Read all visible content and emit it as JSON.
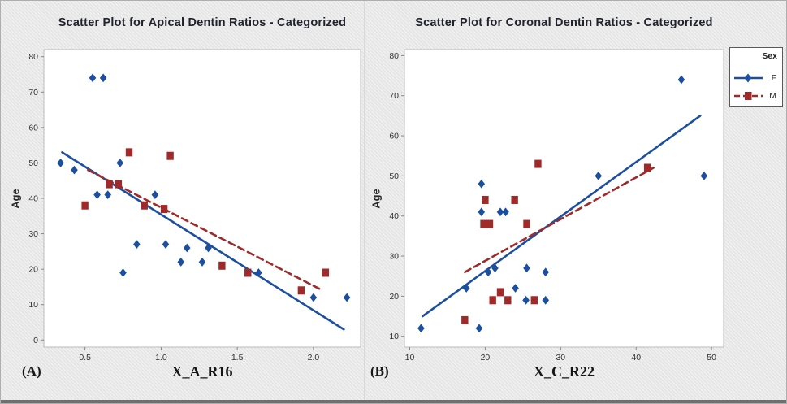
{
  "figure": {
    "panel_a_label": "(A)",
    "panel_b_label": "(B)"
  },
  "colors": {
    "female": "#1c4f9f",
    "male": "#a02a2a",
    "frame": "#bbbbbb",
    "tick": "#888888",
    "tick_text": "#333333",
    "plot_bg": "#ffffff",
    "title_text": "#20222c",
    "panel_bg": "#e9e9ea"
  },
  "legend": {
    "title": "Sex",
    "entries": [
      {
        "label": "F",
        "marker": "diamond",
        "line": "solid"
      },
      {
        "label": "M",
        "marker": "square",
        "line": "dashed"
      }
    ]
  },
  "chart_data": [
    {
      "type": "scatter",
      "title": "Scatter Plot for Apical Dentin Ratios - Categorized",
      "xlabel": "X_A_R16",
      "ylabel": "Age",
      "panel": "A",
      "xlim": [
        0.23,
        2.31
      ],
      "ylim": [
        -2,
        82
      ],
      "xticks": [
        0.5,
        1.0,
        1.5,
        2.0
      ],
      "xtick_labels": [
        "0.5",
        "1.0",
        "1.5",
        "2.0"
      ],
      "yticks": [
        0,
        10,
        20,
        30,
        40,
        50,
        60,
        70,
        80
      ],
      "ytick_labels": [
        "0",
        "10",
        "20",
        "30",
        "40",
        "50",
        "60",
        "70",
        "80"
      ],
      "grid": false,
      "series": [
        {
          "name": "F",
          "marker": "diamond",
          "line": "solid",
          "points": [
            [
              0.55,
              74
            ],
            [
              0.62,
              74
            ],
            [
              0.34,
              50
            ],
            [
              0.73,
              50
            ],
            [
              0.43,
              48
            ],
            [
              0.58,
              41
            ],
            [
              0.65,
              41
            ],
            [
              0.96,
              41
            ],
            [
              0.84,
              27
            ],
            [
              1.03,
              27
            ],
            [
              1.17,
              26
            ],
            [
              1.31,
              26
            ],
            [
              1.13,
              22
            ],
            [
              1.27,
              22
            ],
            [
              0.75,
              19
            ],
            [
              1.64,
              19
            ],
            [
              2.0,
              12
            ],
            [
              2.22,
              12
            ]
          ],
          "trend": {
            "from": [
              0.35,
              53
            ],
            "to": [
              2.2,
              3
            ]
          }
        },
        {
          "name": "M",
          "marker": "square",
          "line": "dashed",
          "points": [
            [
              0.79,
              53
            ],
            [
              1.06,
              52
            ],
            [
              0.66,
              44
            ],
            [
              0.72,
              44
            ],
            [
              0.5,
              38
            ],
            [
              0.89,
              38
            ],
            [
              1.02,
              37
            ],
            [
              1.4,
              21
            ],
            [
              1.57,
              19
            ],
            [
              2.08,
              19
            ],
            [
              1.92,
              14
            ]
          ],
          "trend": {
            "from": [
              0.52,
              48
            ],
            "to": [
              2.06,
              14
            ]
          }
        }
      ]
    },
    {
      "type": "scatter",
      "title": "Scatter Plot for Coronal Dentin Ratios - Categorized",
      "xlabel": "X_C_R22",
      "ylabel": "Age",
      "panel": "B",
      "xlim": [
        9.3,
        51.6
      ],
      "ylim": [
        7.3,
        81.5
      ],
      "xticks": [
        10,
        20,
        30,
        40,
        50
      ],
      "xtick_labels": [
        "10",
        "20",
        "30",
        "40",
        "50"
      ],
      "yticks": [
        10,
        20,
        30,
        40,
        50,
        60,
        70,
        80
      ],
      "ytick_labels": [
        "10",
        "20",
        "30",
        "40",
        "50",
        "60",
        "70",
        "80"
      ],
      "grid": false,
      "series": [
        {
          "name": "F",
          "marker": "diamond",
          "line": "solid",
          "points": [
            [
              46,
              74
            ],
            [
              35,
              50
            ],
            [
              49,
              50
            ],
            [
              19.5,
              48
            ],
            [
              19.5,
              41
            ],
            [
              22,
              41
            ],
            [
              22.7,
              41
            ],
            [
              21.3,
              27
            ],
            [
              25.5,
              27
            ],
            [
              20.4,
              26
            ],
            [
              28,
              26
            ],
            [
              17.5,
              22
            ],
            [
              24,
              22
            ],
            [
              25.4,
              19
            ],
            [
              28,
              19
            ],
            [
              11.5,
              12
            ],
            [
              19.2,
              12
            ]
          ],
          "trend": {
            "from": [
              11.7,
              15
            ],
            "to": [
              48.5,
              65
            ]
          }
        },
        {
          "name": "M",
          "marker": "square",
          "line": "dashed",
          "points": [
            [
              27,
              53
            ],
            [
              41.5,
              52
            ],
            [
              20,
              44
            ],
            [
              23.9,
              44
            ],
            [
              19.8,
              38
            ],
            [
              20.6,
              38
            ],
            [
              25.5,
              38
            ],
            [
              22,
              21
            ],
            [
              21,
              19
            ],
            [
              23,
              19
            ],
            [
              26.5,
              19
            ],
            [
              17.3,
              14
            ]
          ],
          "trend": {
            "from": [
              17.3,
              26
            ],
            "to": [
              42.3,
              52
            ]
          }
        }
      ]
    }
  ]
}
